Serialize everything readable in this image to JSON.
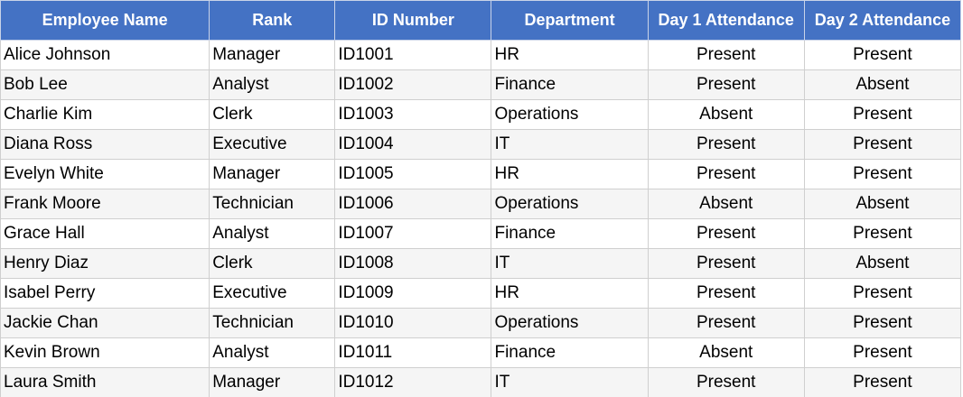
{
  "table": {
    "header": [
      "Employee Name",
      "Rank",
      "ID Number",
      "Department",
      "Day 1 Attendance",
      "Day 2 Attendance"
    ],
    "rows": [
      [
        "Alice Johnson",
        "Manager",
        "ID1001",
        "HR",
        "Present",
        "Present"
      ],
      [
        "Bob Lee",
        "Analyst",
        "ID1002",
        "Finance",
        "Present",
        "Absent"
      ],
      [
        "Charlie Kim",
        "Clerk",
        "ID1003",
        "Operations",
        "Absent",
        "Present"
      ],
      [
        "Diana Ross",
        "Executive",
        "ID1004",
        "IT",
        "Present",
        "Present"
      ],
      [
        "Evelyn White",
        "Manager",
        "ID1005",
        "HR",
        "Present",
        "Present"
      ],
      [
        "Frank Moore",
        "Technician",
        "ID1006",
        "Operations",
        "Absent",
        "Absent"
      ],
      [
        "Grace Hall",
        "Analyst",
        "ID1007",
        "Finance",
        "Present",
        "Present"
      ],
      [
        "Henry Diaz",
        "Clerk",
        "ID1008",
        "IT",
        "Present",
        "Absent"
      ],
      [
        "Isabel Perry",
        "Executive",
        "ID1009",
        "HR",
        "Present",
        "Present"
      ],
      [
        "Jackie Chan",
        "Technician",
        "ID1010",
        "Operations",
        "Present",
        "Present"
      ],
      [
        "Kevin Brown",
        "Analyst",
        "ID1011",
        "Finance",
        "Absent",
        "Present"
      ],
      [
        "Laura Smith",
        "Manager",
        "ID1012",
        "IT",
        "Present",
        "Present"
      ]
    ]
  }
}
